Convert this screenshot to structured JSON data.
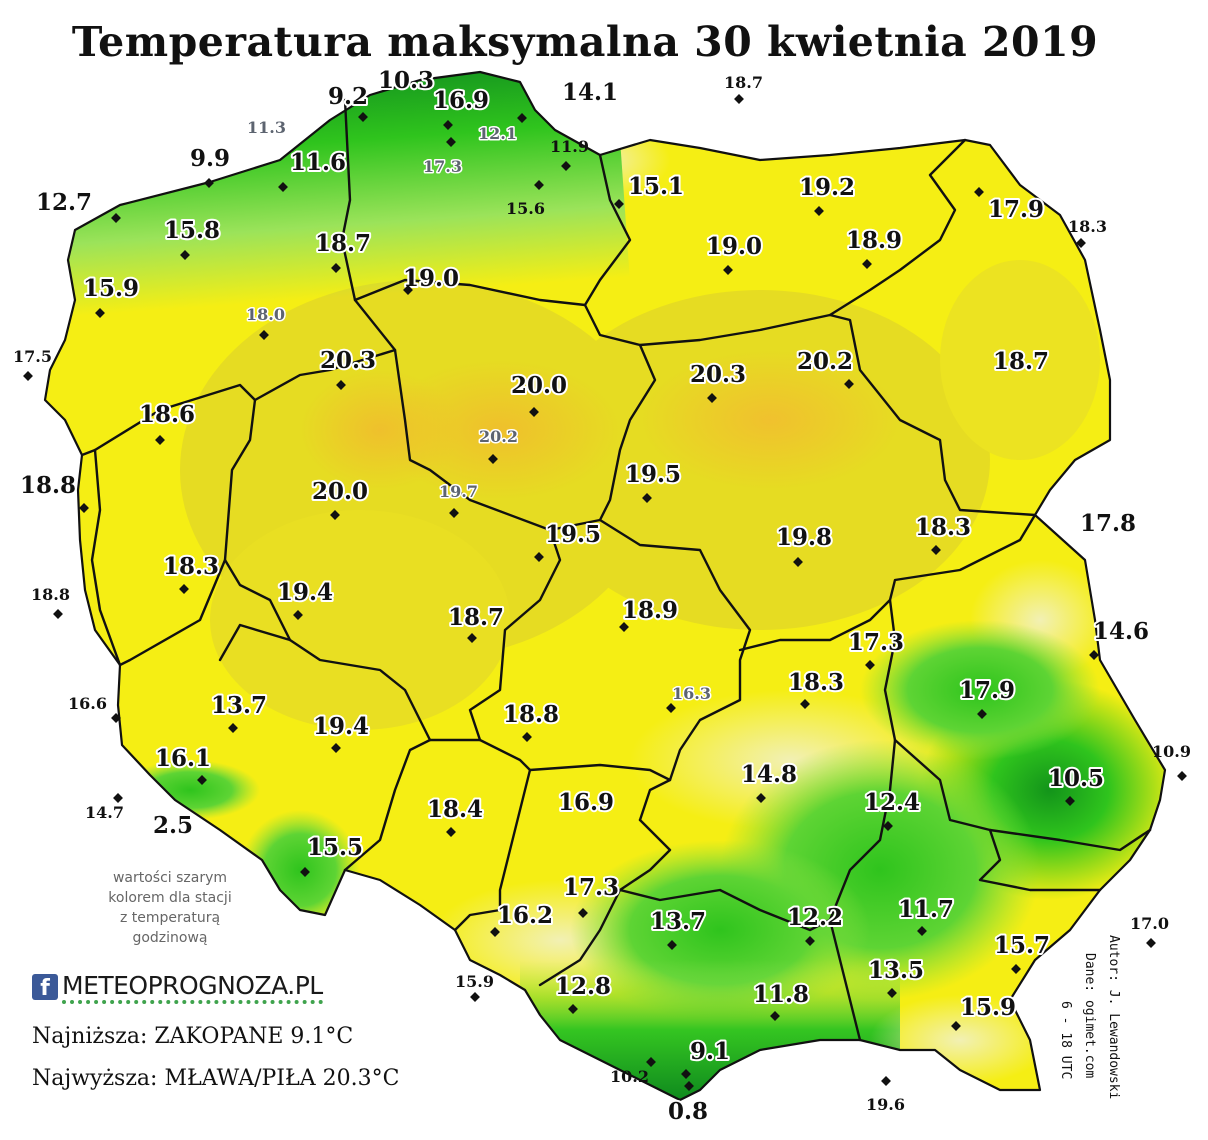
{
  "title": "Temperatura maksymalna 30 kwietnia 2019",
  "note": [
    "wartości szarym",
    "kolorem dla stacji",
    "z temperaturą",
    "godzinową"
  ],
  "brand": {
    "icon": "facebook-icon",
    "text": "METEOPROGNOZA.PL"
  },
  "lowest": "Najniższa: ZAKOPANE 9.1°C",
  "highest": "Najwyższa: MŁAWA/PIŁA 20.3°C",
  "author": [
    "Autor: J. Lewandowski",
    "Dane: ogimet.com",
    "6 - 18 UTC"
  ],
  "colors": {
    "land_yellow": "#f5ef12",
    "land_olive": "#e6dc21",
    "land_orange": "#efc22c",
    "land_pale": "#f2f0ad",
    "land_green_light": "#8fe041",
    "land_green": "#3ecf22",
    "land_green_dark": "#15951a",
    "border": "#111111"
  },
  "stations": [
    {
      "label": "10.3",
      "style": "big",
      "marker": false
    },
    {
      "label": "9.2",
      "style": "big",
      "marker": true
    },
    {
      "label": "16.9",
      "style": "big",
      "marker": true
    },
    {
      "label": "14.1",
      "style": "big",
      "marker": true
    },
    {
      "label": "18.7",
      "style": "small",
      "marker": true
    },
    {
      "label": "11.3",
      "style": "grey",
      "marker": false
    },
    {
      "label": "12.1",
      "style": "grey",
      "marker": false
    },
    {
      "label": "11.9",
      "style": "small",
      "marker": true
    },
    {
      "label": "17.3",
      "style": "grey",
      "marker": true
    },
    {
      "label": "9.9",
      "style": "big",
      "marker": true
    },
    {
      "label": "11.6",
      "style": "big",
      "marker": true
    },
    {
      "label": "15.1",
      "style": "big",
      "marker": true
    },
    {
      "label": "19.2",
      "style": "big",
      "marker": true
    },
    {
      "label": "12.7",
      "style": "big",
      "marker": true
    },
    {
      "label": "15.6",
      "style": "small",
      "marker": true
    },
    {
      "label": "17.9",
      "style": "big",
      "marker": true
    },
    {
      "label": "18.3",
      "style": "small",
      "marker": true
    },
    {
      "label": "15.8",
      "style": "big",
      "marker": true
    },
    {
      "label": "18.7",
      "style": "big",
      "marker": true
    },
    {
      "label": "19.0",
      "style": "big",
      "marker": true
    },
    {
      "label": "18.9",
      "style": "big",
      "marker": true
    },
    {
      "label": "15.9",
      "style": "big",
      "marker": true
    },
    {
      "label": "19.0",
      "style": "big",
      "marker": true
    },
    {
      "label": "18.0",
      "style": "grey",
      "marker": true
    },
    {
      "label": "17.5",
      "style": "small",
      "marker": true
    },
    {
      "label": "20.3",
      "style": "big",
      "marker": true
    },
    {
      "label": "20.0",
      "style": "big",
      "marker": true
    },
    {
      "label": "20.3",
      "style": "big",
      "marker": true
    },
    {
      "label": "20.2",
      "style": "big",
      "marker": true
    },
    {
      "label": "18.7",
      "style": "big",
      "marker": false
    },
    {
      "label": "18.6",
      "style": "big",
      "marker": true
    },
    {
      "label": "20.2",
      "style": "grey",
      "marker": true
    },
    {
      "label": "18.8",
      "style": "big",
      "marker": true
    },
    {
      "label": "19.5",
      "style": "big",
      "marker": true
    },
    {
      "label": "20.0",
      "style": "big",
      "marker": true
    },
    {
      "label": "19.7",
      "style": "grey",
      "marker": true
    },
    {
      "label": "19.5",
      "style": "big",
      "marker": true
    },
    {
      "label": "19.8",
      "style": "big",
      "marker": true
    },
    {
      "label": "18.3",
      "style": "big",
      "marker": true
    },
    {
      "label": "17.8",
      "style": "big",
      "marker": false
    },
    {
      "label": "18.3",
      "style": "big",
      "marker": true
    },
    {
      "label": "19.4",
      "style": "big",
      "marker": true
    },
    {
      "label": "18.8",
      "style": "small",
      "marker": true
    },
    {
      "label": "18.7",
      "style": "big",
      "marker": true
    },
    {
      "label": "18.9",
      "style": "big",
      "marker": true
    },
    {
      "label": "14.6",
      "style": "big",
      "marker": true
    },
    {
      "label": "17.3",
      "style": "big",
      "marker": true
    },
    {
      "label": "16.6",
      "style": "small",
      "marker": true
    },
    {
      "label": "18.3",
      "style": "big",
      "marker": true
    },
    {
      "label": "16.3",
      "style": "grey",
      "marker": true
    },
    {
      "label": "17.9",
      "style": "big",
      "marker": true
    },
    {
      "label": "13.7",
      "style": "big",
      "marker": true
    },
    {
      "label": "19.4",
      "style": "big",
      "marker": true
    },
    {
      "label": "18.8",
      "style": "big",
      "marker": true
    },
    {
      "label": "16.1",
      "style": "big",
      "marker": true
    },
    {
      "label": "10.9",
      "style": "small",
      "marker": true
    },
    {
      "label": "14.8",
      "style": "big",
      "marker": true
    },
    {
      "label": "10.5",
      "style": "big",
      "marker": true
    },
    {
      "label": "14.7",
      "style": "small",
      "marker": true
    },
    {
      "label": "2.5",
      "style": "big",
      "marker": false
    },
    {
      "label": "12.4",
      "style": "big",
      "marker": true
    },
    {
      "label": "18.4",
      "style": "big",
      "marker": true
    },
    {
      "label": "16.9",
      "style": "big",
      "marker": false
    },
    {
      "label": "15.5",
      "style": "big",
      "marker": true
    },
    {
      "label": "17.3",
      "style": "big",
      "marker": true
    },
    {
      "label": "11.7",
      "style": "big",
      "marker": true
    },
    {
      "label": "16.2",
      "style": "big",
      "marker": true
    },
    {
      "label": "13.7",
      "style": "big",
      "marker": true
    },
    {
      "label": "12.2",
      "style": "big",
      "marker": true
    },
    {
      "label": "17.0",
      "style": "small",
      "marker": true
    },
    {
      "label": "15.7",
      "style": "big",
      "marker": true
    },
    {
      "label": "13.5",
      "style": "big",
      "marker": true
    },
    {
      "label": "15.9",
      "style": "small",
      "marker": true
    },
    {
      "label": "12.8",
      "style": "big",
      "marker": true
    },
    {
      "label": "11.8",
      "style": "big",
      "marker": true
    },
    {
      "label": "15.9",
      "style": "big",
      "marker": true
    },
    {
      "label": "9.1",
      "style": "big",
      "marker": true
    },
    {
      "label": "10.2",
      "style": "small",
      "marker": true
    },
    {
      "label": "0.8",
      "style": "big",
      "marker": true
    },
    {
      "label": "19.6",
      "style": "small",
      "marker": true
    }
  ]
}
